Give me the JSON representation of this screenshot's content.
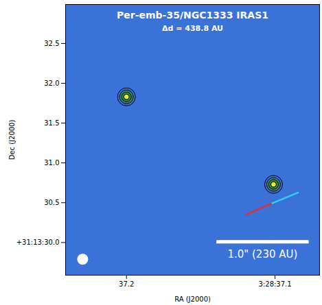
{
  "chart_data": {
    "type": "image",
    "title": "Per-emb-35/NGC1333 IRAS1",
    "subtitle": "Δd = 438.8 AU",
    "x_label": "RA (J2000)",
    "y_label": "Dec (J2000)",
    "xlim": [
      37.241,
      37.07
    ],
    "ylim": [
      29.59,
      32.99
    ],
    "xticks": [
      37.2,
      {
        "value": 37.1,
        "label": "3:28:37.1"
      }
    ],
    "yticks": [
      {
        "value": 30,
        "label": "+31:13:30.0"
      },
      30.5,
      {
        "value": 31,
        "label": "31.0"
      },
      31.5,
      {
        "value": 32,
        "label": "32.0"
      },
      32.5
    ],
    "sources": {
      "x": [
        37.2,
        37.101
      ],
      "y": [
        31.83,
        30.73
      ]
    },
    "outflow": {
      "x": [
        37.1195,
        37.1023,
        37.0841
      ],
      "y": [
        30.35,
        30.49,
        30.63
      ],
      "colors": [
        "#e03030",
        "#30d0f0"
      ]
    },
    "beam": {
      "x": 37.2295,
      "y": 29.79
    },
    "scale_bar": {
      "label": "1.0\" (230 AU)",
      "x": [
        37.1395,
        37.0773
      ],
      "y": 30.01
    }
  }
}
